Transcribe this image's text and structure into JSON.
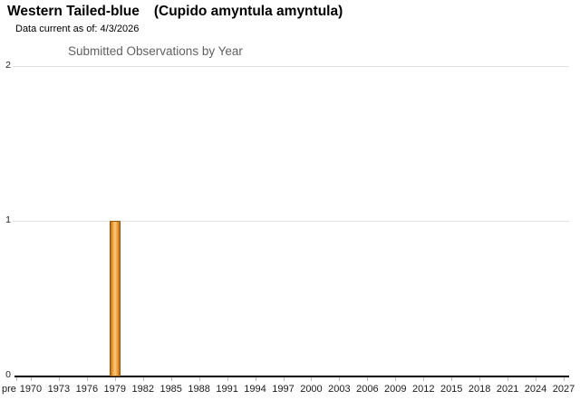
{
  "page": {
    "title_common": "Western Tailed-blue",
    "title_scientific": "(Cupido amyntula amyntula)",
    "data_current": "Data current as of: 4/3/2026"
  },
  "chart_data": {
    "type": "bar",
    "title": "Submitted Observations by Year",
    "categories": [
      "pre",
      "1970",
      "1973",
      "1976",
      "1979",
      "1982",
      "1985",
      "1988",
      "1991",
      "1994",
      "1997",
      "2000",
      "2003",
      "2006",
      "2009",
      "2012",
      "2015",
      "2018",
      "2021",
      "2024",
      "2027"
    ],
    "values": [
      0,
      0,
      0,
      0,
      1,
      0,
      0,
      0,
      0,
      0,
      0,
      0,
      0,
      0,
      0,
      0,
      0,
      0,
      0,
      0,
      0
    ],
    "xlabel": "",
    "ylabel": "",
    "ylim": [
      0,
      2
    ],
    "yticks": [
      0,
      1,
      2
    ],
    "grid": true,
    "legend": "none",
    "colors": {
      "bar_border": "#91540e",
      "bar_fill_edge": "#b96b15",
      "bar_fill_mid": "#f8c97e",
      "gridline": "#e3e3e3",
      "axis": "#000000",
      "chart_title": "#606060"
    }
  }
}
